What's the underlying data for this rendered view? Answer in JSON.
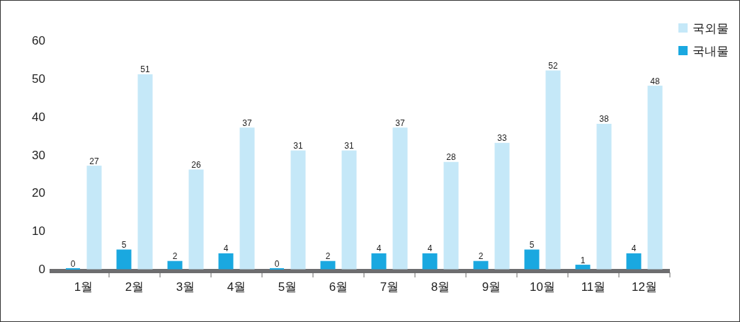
{
  "chart_data": {
    "type": "bar",
    "categories": [
      "1월",
      "2월",
      "3월",
      "4월",
      "5월",
      "6월",
      "7월",
      "8월",
      "9월",
      "10월",
      "11월",
      "12월"
    ],
    "series": [
      {
        "name": "국내물",
        "color": "#1aa8e0",
        "values": [
          0,
          5,
          2,
          4,
          0,
          2,
          4,
          4,
          2,
          5,
          1,
          4
        ]
      },
      {
        "name": "국외물",
        "color": "#c5e8f8",
        "values": [
          27,
          51,
          26,
          37,
          31,
          31,
          37,
          28,
          33,
          52,
          38,
          48
        ]
      }
    ],
    "ylim": [
      0,
      60
    ],
    "yticks": [
      0,
      10,
      20,
      30,
      40,
      50,
      60
    ],
    "data_labels": true,
    "grid": false,
    "legend": "top right"
  }
}
